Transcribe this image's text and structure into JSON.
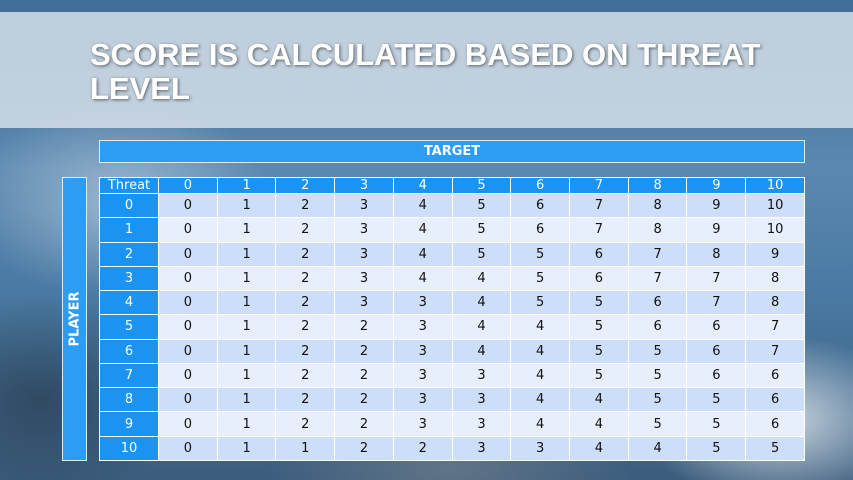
{
  "title": "SCORE IS CALCULATED BASED ON THREAT LEVEL",
  "target_label": "TARGET",
  "player_label": "PLAYER",
  "table": {
    "corner": "Threat",
    "columns": [
      "0",
      "1",
      "2",
      "3",
      "4",
      "5",
      "6",
      "7",
      "8",
      "9",
      "10"
    ],
    "rows": [
      {
        "label": "0",
        "values": [
          "0",
          "1",
          "2",
          "3",
          "4",
          "5",
          "6",
          "7",
          "8",
          "9",
          "10"
        ]
      },
      {
        "label": "1",
        "values": [
          "0",
          "1",
          "2",
          "3",
          "4",
          "5",
          "6",
          "7",
          "8",
          "9",
          "10"
        ]
      },
      {
        "label": "2",
        "values": [
          "0",
          "1",
          "2",
          "3",
          "4",
          "5",
          "5",
          "6",
          "7",
          "8",
          "9"
        ]
      },
      {
        "label": "3",
        "values": [
          "0",
          "1",
          "2",
          "3",
          "4",
          "4",
          "5",
          "6",
          "7",
          "7",
          "8"
        ]
      },
      {
        "label": "4",
        "values": [
          "0",
          "1",
          "2",
          "3",
          "3",
          "4",
          "5",
          "5",
          "6",
          "7",
          "8"
        ]
      },
      {
        "label": "5",
        "values": [
          "0",
          "1",
          "2",
          "2",
          "3",
          "4",
          "4",
          "5",
          "6",
          "6",
          "7"
        ]
      },
      {
        "label": "6",
        "values": [
          "0",
          "1",
          "2",
          "2",
          "3",
          "4",
          "4",
          "5",
          "5",
          "6",
          "7"
        ]
      },
      {
        "label": "7",
        "values": [
          "0",
          "1",
          "2",
          "2",
          "3",
          "3",
          "4",
          "5",
          "5",
          "6",
          "6"
        ]
      },
      {
        "label": "8",
        "values": [
          "0",
          "1",
          "2",
          "2",
          "3",
          "3",
          "4",
          "4",
          "5",
          "5",
          "6"
        ]
      },
      {
        "label": "9",
        "values": [
          "0",
          "1",
          "2",
          "2",
          "3",
          "3",
          "4",
          "4",
          "5",
          "5",
          "6"
        ]
      },
      {
        "label": "10",
        "values": [
          "0",
          "1",
          "1",
          "2",
          "2",
          "3",
          "3",
          "4",
          "4",
          "5",
          "5"
        ]
      }
    ]
  },
  "colors": {
    "header": "#1a94f0",
    "row_dark": "#cddff8",
    "row_light": "#e6effb"
  }
}
